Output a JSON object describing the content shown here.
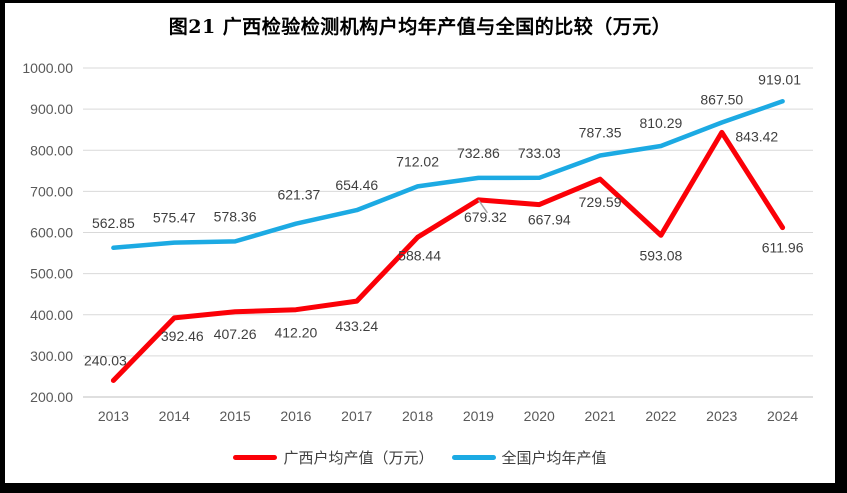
{
  "chart_data": {
    "type": "line",
    "title": "图21 广西检验检测机构户均年产值与全国的比较（万元）",
    "categories": [
      "2013",
      "2014",
      "2015",
      "2016",
      "2017",
      "2018",
      "2019",
      "2020",
      "2021",
      "2022",
      "2023",
      "2024"
    ],
    "series": [
      {
        "name": "广西户均产值（万元）",
        "color": "#fb0007",
        "values": [
          240.03,
          392.46,
          407.26,
          412.2,
          433.24,
          588.44,
          679.32,
          667.94,
          729.59,
          593.08,
          843.42,
          611.96
        ]
      },
      {
        "name": "全国户均年产值",
        "color": "#1caae3",
        "values": [
          562.85,
          575.47,
          578.36,
          621.37,
          654.46,
          712.02,
          732.86,
          733.03,
          787.35,
          810.29,
          867.5,
          919.01
        ]
      }
    ],
    "ylim": [
      200,
      1000
    ],
    "ytick_step": 100,
    "ytick_labels": [
      "200.00",
      "300.00",
      "400.00",
      "500.00",
      "600.00",
      "700.00",
      "800.00",
      "900.00",
      "1000.00"
    ],
    "grid": "horizontal",
    "legend_position": "bottom",
    "data_labels": true
  },
  "colors": {
    "guangxi_red": "#fb0007",
    "national_blue": "#1caae3",
    "gridline": "#d9d9d9",
    "axis_line": "#bfbfbf",
    "axis_text": "#595959",
    "data_label_text": "#3f3f3f",
    "leader_line": "#a6a6a6",
    "frame_border": "#000000",
    "background": "#ffffff"
  }
}
